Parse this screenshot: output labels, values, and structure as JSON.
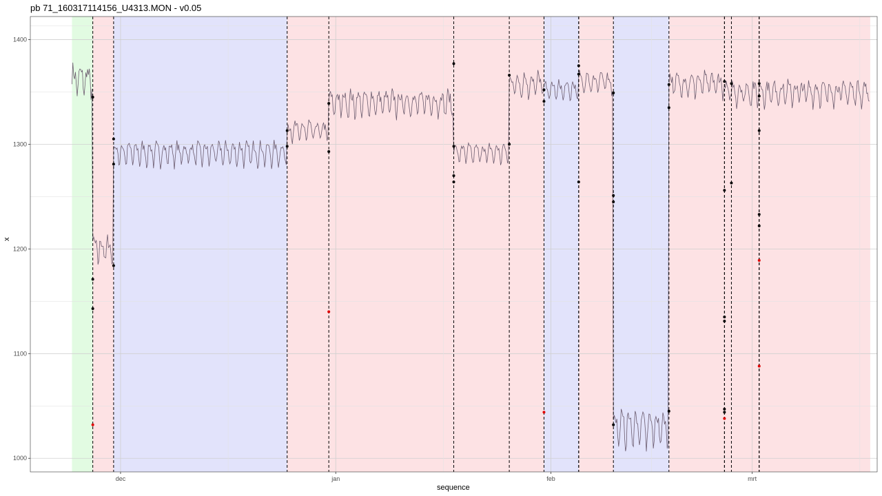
{
  "chart_data": {
    "type": "line",
    "title": "pb 71_160317114156_U4313.MON - v0.05",
    "xlabel": "sequence",
    "ylabel": "x",
    "ylim": [
      987,
      1422
    ],
    "xlim": [
      "2015-11-18",
      "2016-03-19"
    ],
    "y_ticks": [
      1000,
      1100,
      1200,
      1300,
      1400
    ],
    "x_ticks": [
      {
        "label": "dec",
        "date": "2015-12-01"
      },
      {
        "label": "jan",
        "date": "2016-01-01"
      },
      {
        "label": "feb",
        "date": "2016-02-01"
      },
      {
        "label": "mrt",
        "date": "2016-03-01"
      }
    ],
    "grid": true,
    "line_color": "#6b5b6e",
    "segment_colors": {
      "green": "#e2fbe2",
      "red": "#fde2e4",
      "blue": "#e2e3fb"
    },
    "segments": [
      {
        "start": "2015-11-24",
        "end": "2015-11-27",
        "color": "green",
        "level": 1362,
        "amp": 10,
        "noise": 8
      },
      {
        "start": "2015-11-27",
        "end": "2015-11-30",
        "color": "red",
        "level": 1200,
        "amp": 10,
        "noise": 6
      },
      {
        "start": "2015-11-30",
        "end": "2015-12-25",
        "color": "blue",
        "level": 1292,
        "amp": 9,
        "noise": 4
      },
      {
        "start": "2015-12-25",
        "end": "2015-12-31",
        "color": "red",
        "level": 1313,
        "amp": 8,
        "noise": 4
      },
      {
        "start": "2015-12-31",
        "end": "2016-01-18",
        "color": "red",
        "level": 1340,
        "amp": 10,
        "noise": 5
      },
      {
        "start": "2016-01-18",
        "end": "2016-01-26",
        "color": "red",
        "level": 1292,
        "amp": 8,
        "noise": 3
      },
      {
        "start": "2016-01-26",
        "end": "2016-01-31",
        "color": "red",
        "level": 1358,
        "amp": 10,
        "noise": 5
      },
      {
        "start": "2016-01-31",
        "end": "2016-02-05",
        "color": "blue",
        "level": 1352,
        "amp": 8,
        "noise": 3
      },
      {
        "start": "2016-02-05",
        "end": "2016-02-10",
        "color": "red",
        "level": 1360,
        "amp": 8,
        "noise": 4
      },
      {
        "start": "2016-02-10",
        "end": "2016-02-18",
        "color": "blue",
        "level": 1030,
        "amp": 15,
        "noise": 5
      },
      {
        "start": "2016-02-18",
        "end": "2016-02-26",
        "color": "red",
        "level": 1358,
        "amp": 9,
        "noise": 5
      },
      {
        "start": "2016-02-26",
        "end": "2016-03-02",
        "color": "red",
        "level": 1350,
        "amp": 9,
        "noise": 5
      },
      {
        "start": "2016-03-02",
        "end": "2016-03-18",
        "color": "red",
        "level": 1350,
        "amp": 9,
        "noise": 5
      }
    ],
    "changepoints": [
      "2015-11-27",
      "2015-11-30",
      "2015-12-25",
      "2015-12-31",
      "2016-01-18",
      "2016-01-26",
      "2016-01-31",
      "2016-02-05",
      "2016-02-05",
      "2016-02-10",
      "2016-02-18",
      "2016-02-26",
      "2016-02-26",
      "2016-02-27",
      "2016-03-02",
      "2016-03-02"
    ],
    "black_points": [
      {
        "date": "2015-11-27",
        "y": 1345
      },
      {
        "date": "2015-11-27",
        "y": 1171
      },
      {
        "date": "2015-11-27",
        "y": 1143
      },
      {
        "date": "2015-11-30",
        "y": 1305
      },
      {
        "date": "2015-11-30",
        "y": 1281
      },
      {
        "date": "2015-11-30",
        "y": 1184
      },
      {
        "date": "2015-12-25",
        "y": 1313
      },
      {
        "date": "2015-12-25",
        "y": 1298
      },
      {
        "date": "2015-12-31",
        "y": 1339
      },
      {
        "date": "2015-12-31",
        "y": 1293
      },
      {
        "date": "2016-01-18",
        "y": 1377
      },
      {
        "date": "2016-01-18",
        "y": 1298
      },
      {
        "date": "2016-01-18",
        "y": 1270
      },
      {
        "date": "2016-01-18",
        "y": 1264
      },
      {
        "date": "2016-01-26",
        "y": 1366
      },
      {
        "date": "2016-01-26",
        "y": 1300
      },
      {
        "date": "2016-01-31",
        "y": 1352
      },
      {
        "date": "2016-01-31",
        "y": 1341
      },
      {
        "date": "2016-02-05",
        "y": 1375
      },
      {
        "date": "2016-02-05",
        "y": 1367
      },
      {
        "date": "2016-02-05",
        "y": 1264
      },
      {
        "date": "2016-02-10",
        "y": 1349
      },
      {
        "date": "2016-02-10",
        "y": 1251
      },
      {
        "date": "2016-02-10",
        "y": 1245
      },
      {
        "date": "2016-02-10",
        "y": 1032
      },
      {
        "date": "2016-02-18",
        "y": 1357
      },
      {
        "date": "2016-02-18",
        "y": 1335
      },
      {
        "date": "2016-02-18",
        "y": 1045
      },
      {
        "date": "2016-02-26",
        "y": 1360
      },
      {
        "date": "2016-02-26",
        "y": 1256
      },
      {
        "date": "2016-02-26",
        "y": 1135
      },
      {
        "date": "2016-02-26",
        "y": 1131
      },
      {
        "date": "2016-02-26",
        "y": 1047
      },
      {
        "date": "2016-02-26",
        "y": 1044
      },
      {
        "date": "2016-02-27",
        "y": 1358
      },
      {
        "date": "2016-02-27",
        "y": 1263
      },
      {
        "date": "2016-03-02",
        "y": 1358
      },
      {
        "date": "2016-03-02",
        "y": 1346
      },
      {
        "date": "2016-03-02",
        "y": 1313
      },
      {
        "date": "2016-03-02",
        "y": 1233
      },
      {
        "date": "2016-03-02",
        "y": 1222
      }
    ],
    "red_points": [
      {
        "date": "2015-11-27",
        "y": 1032
      },
      {
        "date": "2015-12-31",
        "y": 1140
      },
      {
        "date": "2016-01-31",
        "y": 1044
      },
      {
        "date": "2016-02-26",
        "y": 1038
      },
      {
        "date": "2016-03-02",
        "y": 1189
      },
      {
        "date": "2016-03-02",
        "y": 1088
      }
    ]
  }
}
